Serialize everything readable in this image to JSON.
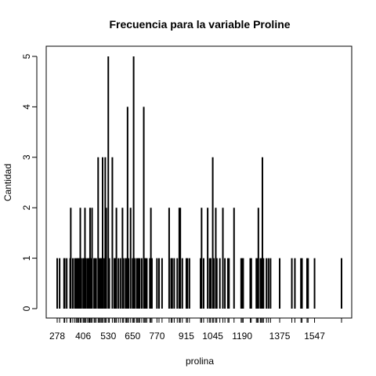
{
  "chart_data": {
    "type": "bar",
    "title": "Frecuencia para la variable Proline",
    "xlabel": "prolina",
    "ylabel": "Cantidad",
    "ylim": [
      0,
      5
    ],
    "y_ticks": [
      "0",
      "1",
      "2",
      "3",
      "4",
      "5"
    ],
    "x_tick_labels": [
      "278",
      "406",
      "530",
      "650",
      "770",
      "915",
      "1045",
      "1190",
      "1375",
      "1547"
    ],
    "categories": [
      "278",
      "290",
      "312",
      "315",
      "325",
      "342",
      "345",
      "355",
      "365",
      "372",
      "378",
      "380",
      "385",
      "392",
      "397",
      "406",
      "410",
      "415",
      "420",
      "428",
      "434",
      "438",
      "440",
      "445",
      "450",
      "460",
      "464",
      "470",
      "480",
      "485",
      "490",
      "495",
      "500",
      "502",
      "510",
      "515",
      "520",
      "530",
      "535",
      "550",
      "560",
      "562",
      "564",
      "570",
      "580",
      "590",
      "600",
      "605",
      "615",
      "620",
      "625",
      "630",
      "640",
      "650",
      "655",
      "660",
      "670",
      "675",
      "680",
      "685",
      "695",
      "705",
      "710",
      "714",
      "720",
      "735",
      "740",
      "745",
      "770",
      "780",
      "795",
      "830",
      "840",
      "845",
      "855",
      "870",
      "880",
      "880.5",
      "885",
      "895",
      "915",
      "920",
      "930",
      "985",
      "990",
      "1000",
      "1020",
      "1030",
      "1035",
      "1045",
      "1050",
      "1060",
      "1065",
      "1080",
      "1095",
      "1105",
      "1120",
      "1125",
      "1150",
      "1185",
      "1190",
      "1195",
      "1230",
      "1235",
      "1260",
      "1265",
      "1270",
      "1280",
      "1285",
      "1290",
      "1295",
      "1310",
      "1320",
      "1330",
      "1375",
      "1435",
      "1450",
      "1480",
      "1485",
      "1510",
      "1515",
      "1547",
      "1680"
    ],
    "values": [
      1,
      1,
      1,
      1,
      1,
      1,
      2,
      1,
      1,
      1,
      1,
      1,
      1,
      2,
      1,
      1,
      1,
      2,
      1,
      1,
      1,
      1,
      2,
      1,
      2,
      1,
      1,
      1,
      3,
      1,
      1,
      1,
      1,
      3,
      1,
      3,
      2,
      5,
      1,
      3,
      1,
      1,
      1,
      2,
      1,
      1,
      2,
      1,
      1,
      1,
      4,
      1,
      2,
      1,
      5,
      1,
      1,
      1,
      1,
      1,
      1,
      4,
      1,
      1,
      1,
      1,
      2,
      1,
      1,
      1,
      1,
      2,
      1,
      1,
      1,
      1,
      2,
      1,
      2,
      1,
      1,
      1,
      1,
      1,
      2,
      1,
      2,
      1,
      1,
      3,
      1,
      2,
      1,
      1,
      2,
      1,
      1,
      1,
      2,
      1,
      1,
      1,
      1,
      1,
      1,
      1,
      2,
      1,
      1,
      3,
      1,
      1,
      1,
      1,
      1,
      1,
      1,
      1,
      1,
      1,
      1,
      1,
      1
    ]
  }
}
